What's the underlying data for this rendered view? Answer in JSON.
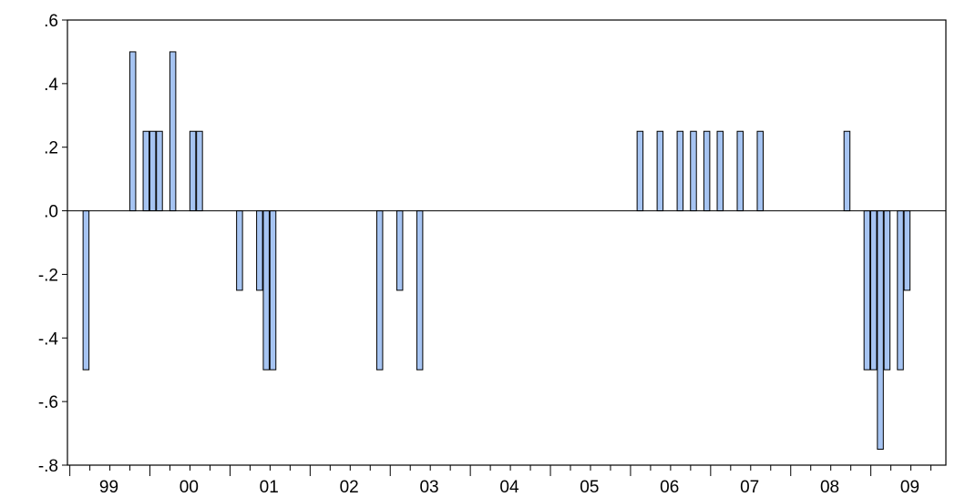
{
  "chart_data": {
    "type": "bar",
    "x_axis": {
      "year_labels": [
        "99",
        "00",
        "01",
        "02",
        "03",
        "04",
        "05",
        "06",
        "07",
        "08",
        "09"
      ],
      "start_year": 1999,
      "periods_per_year": 12
    },
    "y_axis": {
      "ylim": [
        -0.8,
        0.6
      ],
      "ticks": [
        0.6,
        0.4,
        0.2,
        0.0,
        -0.2,
        -0.4,
        -0.6,
        -0.8
      ],
      "tick_labels": [
        ".6",
        ".4",
        ".2",
        ".0",
        "-.2",
        "-.4",
        "-.6",
        "-.8"
      ]
    },
    "grid": false,
    "zero_line": true,
    "bar_color": "#a6c4f2",
    "series": [
      {
        "values": [
          {
            "date": "1999-03",
            "value": -0.5
          },
          {
            "date": "1999-10",
            "value": 0.5
          },
          {
            "date": "1999-12",
            "value": 0.25
          },
          {
            "date": "2000-01",
            "value": 0.25
          },
          {
            "date": "2000-02",
            "value": 0.25
          },
          {
            "date": "2000-04",
            "value": 0.5
          },
          {
            "date": "2000-07",
            "value": 0.25
          },
          {
            "date": "2000-08",
            "value": 0.25
          },
          {
            "date": "2001-02",
            "value": -0.25
          },
          {
            "date": "2001-05",
            "value": -0.25
          },
          {
            "date": "2001-06",
            "value": -0.5
          },
          {
            "date": "2001-07",
            "value": -0.5
          },
          {
            "date": "2002-11",
            "value": -0.5
          },
          {
            "date": "2003-02",
            "value": -0.25
          },
          {
            "date": "2003-05",
            "value": -0.5
          },
          {
            "date": "2006-02",
            "value": 0.25
          },
          {
            "date": "2006-05",
            "value": 0.25
          },
          {
            "date": "2006-08",
            "value": 0.25
          },
          {
            "date": "2006-10",
            "value": 0.25
          },
          {
            "date": "2006-12",
            "value": 0.25
          },
          {
            "date": "2007-02",
            "value": 0.25
          },
          {
            "date": "2007-05",
            "value": 0.25
          },
          {
            "date": "2007-08",
            "value": 0.25
          },
          {
            "date": "2008-09",
            "value": 0.25
          },
          {
            "date": "2008-12",
            "value": -0.5
          },
          {
            "date": "2009-01",
            "value": -0.5
          },
          {
            "date": "2009-02",
            "value": -0.75
          },
          {
            "date": "2009-03",
            "value": -0.5
          },
          {
            "date": "2009-05",
            "value": -0.5
          },
          {
            "date": "2009-06",
            "value": -0.25
          }
        ]
      }
    ]
  }
}
